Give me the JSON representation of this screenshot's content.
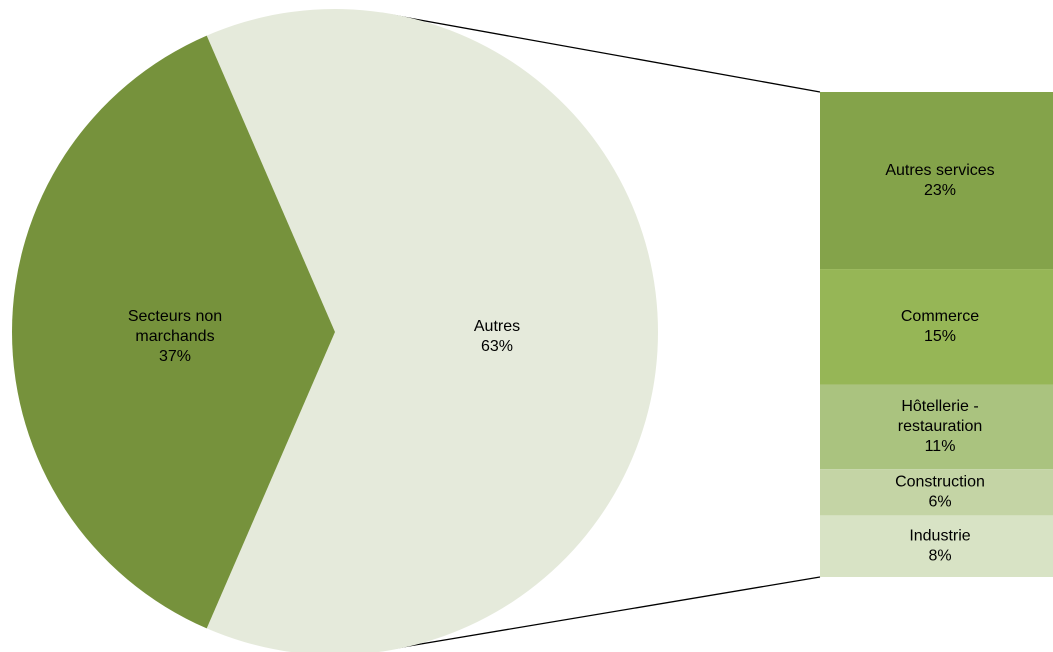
{
  "chart_data": {
    "type": "bar-of-pie",
    "pie": [
      {
        "label_lines": [
          "Secteurs non",
          "marchands"
        ],
        "pct_label": "37%",
        "value": 37,
        "color": "#76923c"
      },
      {
        "label_lines": [
          "Autres"
        ],
        "pct_label": "63%",
        "value": 63,
        "color": "#e5eadb"
      }
    ],
    "bar": [
      {
        "label_lines": [
          "Autres services"
        ],
        "pct_label": "23%",
        "value": 23,
        "color": "#84a34a"
      },
      {
        "label_lines": [
          "Commerce"
        ],
        "pct_label": "15%",
        "value": 15,
        "color": "#96b656"
      },
      {
        "label_lines": [
          "Hôtellerie -",
          "restauration"
        ],
        "pct_label": "11%",
        "value": 11,
        "color": "#aac37f"
      },
      {
        "label_lines": [
          "Construction"
        ],
        "pct_label": "6%",
        "value": 6,
        "color": "#c4d4a5"
      },
      {
        "label_lines": [
          "Industrie"
        ],
        "pct_label": "8%",
        "value": 8,
        "color": "#d8e3c5"
      }
    ],
    "exploded_slice": "Autres",
    "legend": "none"
  }
}
